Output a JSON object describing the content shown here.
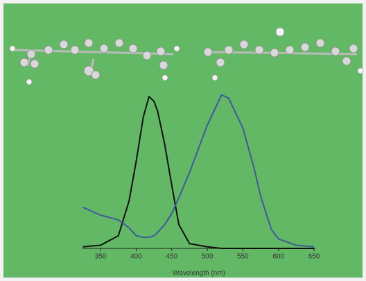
{
  "chart_data": {
    "type": "line",
    "xlabel": "Wavelength (nm)",
    "x": [
      325,
      350,
      375,
      390,
      400,
      410,
      418,
      425,
      430,
      440,
      450,
      460,
      475,
      500,
      520,
      530,
      550,
      565,
      575,
      590,
      600,
      625,
      650
    ],
    "series": [
      {
        "color": "#111111",
        "values": [
          0.01,
          0.02,
          0.08,
          0.3,
          0.55,
          0.83,
          0.96,
          0.93,
          0.87,
          0.66,
          0.4,
          0.15,
          0.03,
          0.01,
          0,
          0,
          0,
          0,
          0,
          0,
          0,
          0,
          0
        ]
      },
      {
        "color": "#3d5a9c",
        "values": [
          0.26,
          0.21,
          0.18,
          0.13,
          0.08,
          0.07,
          0.07,
          0.08,
          0.1,
          0.15,
          0.22,
          0.32,
          0.48,
          0.78,
          0.97,
          0.95,
          0.76,
          0.52,
          0.33,
          0.12,
          0.06,
          0.02,
          0.01
        ]
      }
    ],
    "xlim": [
      325,
      650
    ],
    "ylim": [
      0,
      1
    ],
    "xticks": [
      350,
      400,
      450,
      500,
      550,
      600,
      650
    ]
  }
}
